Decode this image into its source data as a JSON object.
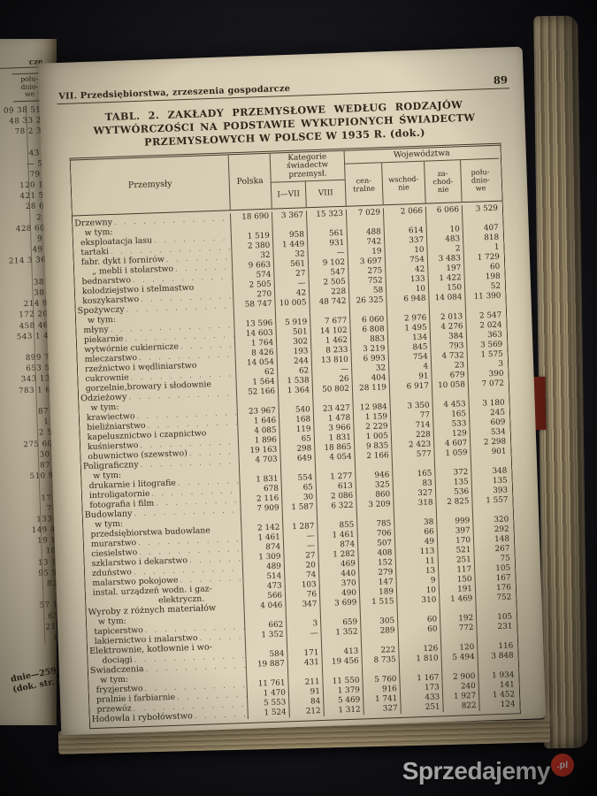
{
  "running_head": "VII. Przedsiębiorstwa, zrzeszenia gospodarcze",
  "page_number": "89",
  "title": {
    "line1": "TABL. 2. ZAKŁADY PRZEMYSŁOWE WEDŁUG RODZAJÓW",
    "line2": "WYTWÓRCZOŚCI NA PODSTAWIE WYKUPIONYCH ŚWIADECTW",
    "line3": "PRZEMYSŁOWYCH W POLSCE W 1935 R. (dok.)"
  },
  "columns": {
    "przemysly": "Przemysły",
    "polska": "Polska",
    "kategorie": "Kategorie świadectw przemysł.",
    "kat_sub": [
      "I—VII",
      "VIII"
    ],
    "wojewodztwa": "Województwa",
    "woj_sub": [
      "cen-\ntralne",
      "wschod-\nnie",
      "za-\nchod-\nnie",
      "połu-\ndnio-\nwe"
    ]
  },
  "dot_leader": ". . . . . . . . . . . . . . . . . . . . . . . . . . . .",
  "rows": [
    {
      "label": "Drzewny",
      "lvl": "major",
      "dots": true,
      "v": [
        "18 690",
        "3 367",
        "15 323",
        "7 029",
        "2 066",
        "6 066",
        "3 529"
      ]
    },
    {
      "label": "w tym:",
      "lvl": "wtym",
      "dots": false,
      "v": [
        "",
        "",
        "",
        "",
        "",
        "",
        ""
      ]
    },
    {
      "label": "eksploatacja lasu",
      "lvl": "sub",
      "dots": true,
      "v": [
        "1 519",
        "958",
        "561",
        "488",
        "614",
        "10",
        "407"
      ]
    },
    {
      "label": "tartaki",
      "lvl": "sub",
      "dots": true,
      "v": [
        "2 380",
        "1 449",
        "931",
        "742",
        "337",
        "483",
        "818"
      ]
    },
    {
      "label": "fabr. dykt i fornirów",
      "lvl": "sub",
      "dots": true,
      "v": [
        "32",
        "32",
        "—",
        "19",
        "10",
        "2",
        "1"
      ]
    },
    {
      "label": "„  mebli i stolarstwo",
      "lvl": "sub2",
      "dots": true,
      "v": [
        "9 663",
        "561",
        "9 102",
        "3 697",
        "754",
        "3 483",
        "1 729"
      ]
    },
    {
      "label": "bednarstwo",
      "lvl": "sub",
      "dots": true,
      "v": [
        "574",
        "27",
        "547",
        "275",
        "42",
        "197",
        "60"
      ]
    },
    {
      "label": "kolodziejstwo i stelmastwo",
      "lvl": "sub",
      "dots": false,
      "v": [
        "2 505",
        "—",
        "2 505",
        "752",
        "133",
        "1 422",
        "198"
      ]
    },
    {
      "label": "koszykarstwo",
      "lvl": "sub",
      "dots": true,
      "v": [
        "270",
        "42",
        "228",
        "58",
        "10",
        "150",
        "52"
      ]
    },
    {
      "label": "Spożywczy",
      "lvl": "major",
      "dots": true,
      "v": [
        "58 747",
        "10 005",
        "48 742",
        "26 325",
        "6 948",
        "14 084",
        "11 390"
      ]
    },
    {
      "label": "w tym:",
      "lvl": "wtym",
      "dots": false,
      "v": [
        "",
        "",
        "",
        "",
        "",
        "",
        ""
      ]
    },
    {
      "label": "młyny",
      "lvl": "sub",
      "dots": true,
      "v": [
        "13 596",
        "5 919",
        "7 677",
        "6 060",
        "2 976",
        "2 013",
        "2 547"
      ]
    },
    {
      "label": "piekarnie",
      "lvl": "sub",
      "dots": true,
      "v": [
        "14 603",
        "501",
        "14 102",
        "6 808",
        "1 495",
        "4 276",
        "2 024"
      ]
    },
    {
      "label": "wytwórnie cukiernicze",
      "lvl": "sub",
      "dots": true,
      "v": [
        "1 764",
        "302",
        "1 462",
        "883",
        "134",
        "384",
        "363"
      ]
    },
    {
      "label": "mleczarstwo",
      "lvl": "sub",
      "dots": true,
      "v": [
        "8 426",
        "193",
        "8 233",
        "3 219",
        "845",
        "793",
        "3 569"
      ]
    },
    {
      "label": "rzeźnictwo i wędliniarstwo",
      "lvl": "sub",
      "dots": false,
      "v": [
        "14 054",
        "244",
        "13 810",
        "6 993",
        "754",
        "4 732",
        "1 575"
      ]
    },
    {
      "label": "cukrownie",
      "lvl": "sub",
      "dots": true,
      "v": [
        "62",
        "62",
        "—",
        "32",
        "4",
        "23",
        "3"
      ]
    },
    {
      "label": "gorzelnie,browary i słodownie",
      "lvl": "sub",
      "dots": false,
      "v": [
        "1 564",
        "1 538",
        "26",
        "404",
        "91",
        "679",
        "390"
      ]
    },
    {
      "label": "Odzieżowy",
      "lvl": "major",
      "dots": true,
      "v": [
        "52 166",
        "1 364",
        "50 802",
        "28 119",
        "6 917",
        "10 058",
        "7 072"
      ]
    },
    {
      "label": "w tym:",
      "lvl": "wtym",
      "dots": false,
      "v": [
        "",
        "",
        "",
        "",
        "",
        "",
        ""
      ]
    },
    {
      "label": "krawiectwo",
      "lvl": "sub",
      "dots": true,
      "v": [
        "23 967",
        "540",
        "23 427",
        "12 984",
        "3 350",
        "4 453",
        "3 180"
      ]
    },
    {
      "label": "bieliźniarstwo",
      "lvl": "sub",
      "dots": true,
      "v": [
        "1 646",
        "168",
        "1 478",
        "1 159",
        "77",
        "165",
        "245"
      ]
    },
    {
      "label": "kapelusznictwo i czapnictwo",
      "lvl": "sub",
      "dots": false,
      "v": [
        "4 085",
        "119",
        "3 966",
        "2 229",
        "714",
        "533",
        "609"
      ]
    },
    {
      "label": "kuśnierstwo",
      "lvl": "sub",
      "dots": true,
      "v": [
        "1 896",
        "65",
        "1 831",
        "1 005",
        "228",
        "129",
        "534"
      ]
    },
    {
      "label": "obuwnictwo (szewstwo)",
      "lvl": "sub",
      "dots": true,
      "v": [
        "19 163",
        "298",
        "18 865",
        "9 835",
        "2 423",
        "4 607",
        "2 298"
      ]
    },
    {
      "label": "Poligraficzny",
      "lvl": "major",
      "dots": true,
      "v": [
        "4 703",
        "649",
        "4 054",
        "2 166",
        "577",
        "1 059",
        "901"
      ]
    },
    {
      "label": "w tym:",
      "lvl": "wtym",
      "dots": false,
      "v": [
        "",
        "",
        "",
        "",
        "",
        "",
        ""
      ]
    },
    {
      "label": "drukarnie i litografie",
      "lvl": "sub",
      "dots": true,
      "v": [
        "1 831",
        "554",
        "1 277",
        "946",
        "165",
        "372",
        "348"
      ]
    },
    {
      "label": "introligatornie",
      "lvl": "sub",
      "dots": true,
      "v": [
        "678",
        "65",
        "613",
        "325",
        "83",
        "135",
        "135"
      ]
    },
    {
      "label": "fotografia i film",
      "lvl": "sub",
      "dots": true,
      "v": [
        "2 116",
        "30",
        "2 086",
        "860",
        "327",
        "536",
        "393"
      ]
    },
    {
      "label": "Budowlany",
      "lvl": "major",
      "dots": true,
      "v": [
        "7 909",
        "1 587",
        "6 322",
        "3 209",
        "318",
        "2 825",
        "1 557"
      ]
    },
    {
      "label": "w tym:",
      "lvl": "wtym",
      "dots": false,
      "v": [
        "",
        "",
        "",
        "",
        "",
        "",
        ""
      ]
    },
    {
      "label": "przedsiębiorstwa budowlane",
      "lvl": "sub",
      "dots": false,
      "v": [
        "2 142",
        "1 287",
        "855",
        "785",
        "38",
        "999",
        "320"
      ]
    },
    {
      "label": "murarstwo",
      "lvl": "sub",
      "dots": true,
      "v": [
        "1 461",
        "—",
        "1 461",
        "706",
        "66",
        "397",
        "292"
      ]
    },
    {
      "label": "ciesielstwo",
      "lvl": "sub",
      "dots": true,
      "v": [
        "874",
        "—",
        "874",
        "507",
        "49",
        "170",
        "148"
      ]
    },
    {
      "label": "szklarstwo i dekarstwo",
      "lvl": "sub",
      "dots": true,
      "v": [
        "1 309",
        "27",
        "1 282",
        "408",
        "113",
        "521",
        "267"
      ]
    },
    {
      "label": "zduństwo",
      "lvl": "sub",
      "dots": true,
      "v": [
        "489",
        "20",
        "469",
        "152",
        "11",
        "251",
        "75"
      ]
    },
    {
      "label": "malarstwo pokojowe",
      "lvl": "sub",
      "dots": true,
      "v": [
        "514",
        "74",
        "440",
        "279",
        "13",
        "117",
        "105"
      ]
    },
    {
      "label": "instal. urządzeń wodn. i gaz-",
      "lvl": "sub",
      "dots": false,
      "v": [
        "473",
        "103",
        "370",
        "147",
        "9",
        "150",
        "167"
      ]
    },
    {
      "label": "elektryczn.",
      "lvl": "cont2",
      "dots": false,
      "v": [
        "566",
        "76",
        "490",
        "189",
        "10",
        "191",
        "176"
      ]
    },
    {
      "label": "Wyroby z różnych materiałów",
      "lvl": "major",
      "dots": false,
      "v": [
        "4 046",
        "347",
        "3 699",
        "1 515",
        "310",
        "1 469",
        "752"
      ]
    },
    {
      "label": "w tym:",
      "lvl": "wtym",
      "dots": false,
      "v": [
        "",
        "",
        "",
        "",
        "",
        "",
        ""
      ]
    },
    {
      "label": "tapicerstwo",
      "lvl": "sub",
      "dots": true,
      "v": [
        "662",
        "3",
        "659",
        "305",
        "60",
        "192",
        "105"
      ]
    },
    {
      "label": "lakiernictwo i malarstwo",
      "lvl": "sub",
      "dots": true,
      "v": [
        "1 352",
        "—",
        "1 352",
        "289",
        "60",
        "772",
        "231"
      ]
    },
    {
      "label": "Elektrownie, kotłownie i wo-",
      "lvl": "major",
      "dots": false,
      "v": [
        "",
        "",
        "",
        "",
        "",
        "",
        ""
      ]
    },
    {
      "label": "dociągi",
      "lvl": "cont",
      "dots": true,
      "v": [
        "584",
        "171",
        "413",
        "222",
        "126",
        "120",
        "116"
      ]
    },
    {
      "label": "Świadczenia",
      "lvl": "major",
      "dots": true,
      "v": [
        "19 887",
        "431",
        "19 456",
        "8 735",
        "1 810",
        "5 494",
        "3 848"
      ]
    },
    {
      "label": "w tym:",
      "lvl": "wtym",
      "dots": false,
      "v": [
        "",
        "",
        "",
        "",
        "",
        "",
        ""
      ]
    },
    {
      "label": "fryzjerstwo",
      "lvl": "sub",
      "dots": true,
      "v": [
        "11 761",
        "211",
        "11 550",
        "5 760",
        "1 167",
        "2 900",
        "1 934"
      ]
    },
    {
      "label": "pralnie i farbiarnie",
      "lvl": "sub",
      "dots": true,
      "v": [
        "1 470",
        "91",
        "1 379",
        "916",
        "173",
        "240",
        "141"
      ]
    },
    {
      "label": "przewóz",
      "lvl": "sub",
      "dots": true,
      "v": [
        "5 553",
        "84",
        "5 469",
        "1 741",
        "433",
        "1 927",
        "1 452"
      ]
    },
    {
      "label": "Hodowla i rybołówstwo",
      "lvl": "major",
      "dots": true,
      "v": [
        "1 524",
        "212",
        "1 312",
        "327",
        "251",
        "822",
        "124"
      ]
    }
  ],
  "left_page": {
    "header_fragment": "cze",
    "column_header": "połu-\ndnio-\nwe",
    "rows": [
      "09 38 512",
      "48 33 26",
      "78 2 39",
      "",
      "43 7",
      "— 53",
      "79 2",
      "120 10",
      "421 57",
      "28 66",
      "2 2",
      "428 600",
      "9 2",
      "49 4",
      "214 3 361",
      "",
      "38 1",
      "38 2",
      "214 94",
      "172 204",
      "458 468",
      "543 1 40",
      "",
      "899 74",
      "653 55",
      "343 133",
      "783 1 62",
      "",
      "87 1",
      "1 9",
      "2 54",
      "275 607",
      "30 3",
      "87 8",
      "510 97",
      "",
      "17 1",
      "7 9",
      "133 9",
      "149 45",
      "19 18",
      "108",
      "13 18",
      "95 50",
      "828",
      "",
      "57 14",
      "639",
      "21 8",
      "89"
    ],
    "footer_line1": "dnie—259, po-",
    "footer_line2": "(dok. str. 89)"
  },
  "watermark": {
    "text": "Sprzedajemy",
    "badge": ".pl"
  },
  "colors": {
    "badge_red": "#e23a2b",
    "bookmark_red": "#8c2a1e",
    "paper": "#d7cdb4",
    "ink": "#2f261a"
  }
}
